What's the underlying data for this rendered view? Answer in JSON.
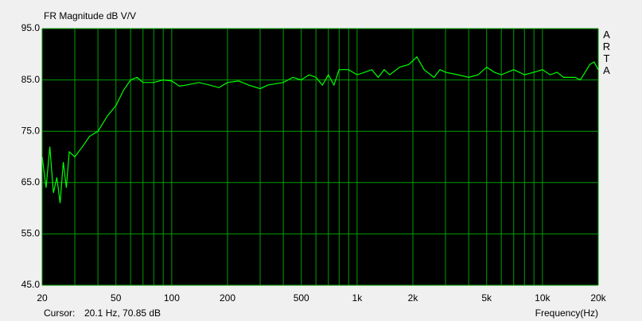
{
  "chart_data": {
    "type": "line",
    "title": "FR Magnitude dB V/V",
    "watermark": "ARTA",
    "cursor_label": "Cursor:",
    "cursor_value": "20.1 Hz, 70.85 dB",
    "xlabel": "Frequency(Hz)",
    "xscale": "log",
    "grid": true,
    "background": "#000000",
    "grid_color": "#00a000",
    "xlim": [
      20,
      20000
    ],
    "xticks": [
      20,
      50,
      100,
      200,
      500,
      {
        "value": 1000,
        "label": "1k"
      },
      {
        "value": 2000,
        "label": "2k"
      },
      {
        "value": 5000,
        "label": "5k"
      },
      {
        "value": 10000,
        "label": "10k"
      },
      {
        "value": 20000,
        "label": "20k"
      }
    ],
    "xminorticks": [
      30,
      40,
      60,
      70,
      80,
      90,
      300,
      400,
      600,
      700,
      800,
      900,
      3000,
      4000,
      6000,
      7000,
      8000,
      9000
    ],
    "ylim": [
      45,
      95
    ],
    "yticks": [
      {
        "value": 45,
        "label": "45.0"
      },
      {
        "value": 55,
        "label": "55.0"
      },
      {
        "value": 65,
        "label": "65.0"
      },
      {
        "value": 75,
        "label": "75.0"
      },
      {
        "value": 85,
        "label": "85.0"
      },
      {
        "value": 95,
        "label": "95.0"
      }
    ],
    "x": [
      20,
      21,
      22,
      23,
      24,
      25,
      26,
      27,
      28,
      30,
      33,
      36,
      40,
      45,
      50,
      55,
      60,
      65,
      70,
      80,
      90,
      100,
      110,
      120,
      140,
      160,
      180,
      200,
      230,
      260,
      300,
      330,
      400,
      450,
      500,
      550,
      600,
      650,
      700,
      750,
      800,
      900,
      1000,
      1100,
      1200,
      1300,
      1400,
      1500,
      1700,
      1900,
      2100,
      2300,
      2600,
      2800,
      3000,
      3500,
      4000,
      4500,
      5000,
      5500,
      6000,
      7000,
      8000,
      9000,
      10000,
      11000,
      12000,
      13000,
      15000,
      16000,
      17000,
      18000,
      19000,
      20000
    ],
    "series": [
      {
        "name": "FR",
        "color": "#00ff00",
        "values": [
          70,
          64,
          72,
          63,
          66,
          61,
          69,
          64,
          71,
          70,
          72,
          74,
          75,
          78,
          80,
          83,
          85,
          85.5,
          84.5,
          84.5,
          85,
          84.8,
          83.8,
          84,
          84.5,
          84,
          83.5,
          84.5,
          84.8,
          84,
          83.3,
          84,
          84.5,
          85.5,
          85,
          86,
          85.5,
          84,
          86,
          84,
          87,
          87,
          86,
          86.5,
          87,
          85.5,
          87,
          86,
          87.5,
          88,
          89.5,
          87,
          85.5,
          87,
          86.5,
          86,
          85.5,
          86,
          87.5,
          86.5,
          86,
          87,
          86,
          86.5,
          87,
          86,
          86.5,
          85.5,
          85.5,
          85,
          86.5,
          88,
          88.5,
          87
        ]
      }
    ]
  }
}
